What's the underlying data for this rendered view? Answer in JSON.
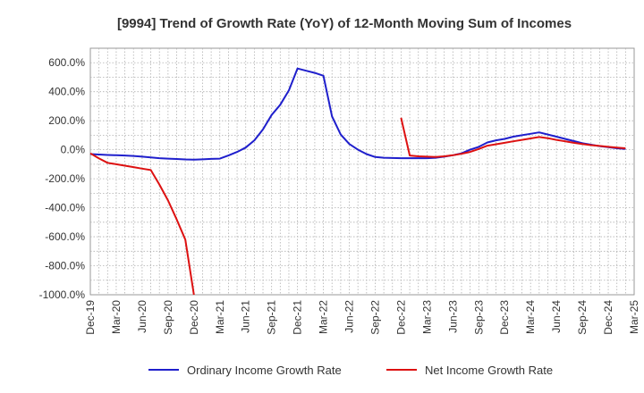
{
  "chart_data": {
    "type": "line",
    "title": "[9994]  Trend of Growth Rate (YoY) of 12-Month Moving Sum of Incomes",
    "xlabel": "",
    "ylabel": "",
    "ylim": [
      -1000,
      700
    ],
    "y_ticks": [
      600,
      400,
      200,
      0,
      -200,
      -400,
      -600,
      -800,
      -1000
    ],
    "y_tick_labels": [
      "600.0%",
      "400.0%",
      "200.0%",
      "0.0%",
      "-200.0%",
      "-400.0%",
      "-600.0%",
      "-800.0%",
      "-1000.0%"
    ],
    "x_tick_labels": [
      "Dec-19",
      "Mar-20",
      "Jun-20",
      "Sep-20",
      "Dec-20",
      "Mar-21",
      "Jun-21",
      "Sep-21",
      "Dec-21",
      "Mar-22",
      "Jun-22",
      "Sep-22",
      "Dec-22",
      "Mar-23",
      "Jun-23",
      "Sep-23",
      "Dec-23",
      "Mar-24",
      "Jun-24",
      "Sep-24",
      "Dec-24",
      "Mar-25"
    ],
    "grid": true,
    "legend_position": "bottom",
    "series": [
      {
        "name": "Ordinary Income Growth Rate",
        "color": "#1f1fcc",
        "values": [
          -30,
          -33,
          -36,
          -38,
          -40,
          -43,
          -48,
          -53,
          -58,
          -61,
          -64,
          -67,
          -68,
          -66,
          -63,
          -61,
          -40,
          -15,
          15,
          65,
          140,
          240,
          310,
          410,
          560,
          545,
          530,
          510,
          230,
          105,
          40,
          0,
          -30,
          -50,
          -55,
          -57,
          -58,
          -58,
          -58,
          -58,
          -55,
          -48,
          -38,
          -25,
          0,
          20,
          50,
          65,
          75,
          90,
          100,
          110,
          120,
          105,
          90,
          75,
          60,
          45,
          35,
          25,
          18,
          10,
          5
        ]
      },
      {
        "name": "Net Income Growth Rate",
        "color": "#dd1111",
        "values": [
          -25,
          -60,
          -90,
          -100,
          -110,
          -120,
          -130,
          -140,
          -240,
          -350,
          -480,
          -620,
          -1000,
          null,
          null,
          null,
          null,
          null,
          null,
          null,
          null,
          null,
          null,
          null,
          null,
          null,
          null,
          null,
          null,
          null,
          null,
          null,
          null,
          null,
          null,
          null,
          220,
          -40,
          -45,
          -48,
          -50,
          -45,
          -38,
          -28,
          -15,
          5,
          28,
          38,
          48,
          58,
          68,
          78,
          88,
          80,
          68,
          58,
          48,
          40,
          32,
          26,
          20,
          15,
          10
        ]
      }
    ]
  }
}
